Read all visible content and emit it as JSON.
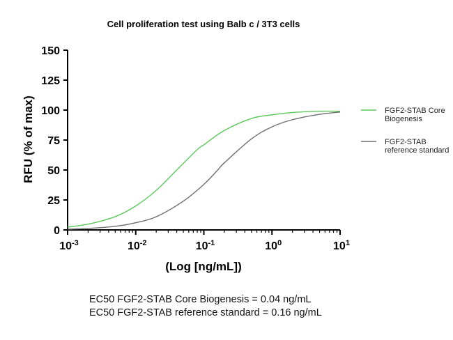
{
  "chart_data": {
    "type": "line",
    "title": "Cell proliferation test using Balb c / 3T3 cells",
    "xlabel": "(Log [ng/mL])",
    "ylabel": "RFU (% of max)",
    "x_scale": "log",
    "xlim": [
      0.001,
      10
    ],
    "ylim": [
      0,
      150
    ],
    "x_ticks": [
      {
        "value": 0.001,
        "base": "10",
        "exp": "-3"
      },
      {
        "value": 0.01,
        "base": "10",
        "exp": "-2"
      },
      {
        "value": 0.1,
        "base": "10",
        "exp": "-1"
      },
      {
        "value": 1,
        "base": "10",
        "exp": "0"
      },
      {
        "value": 10,
        "base": "10",
        "exp": "1"
      }
    ],
    "y_ticks": [
      0,
      25,
      50,
      75,
      100,
      125,
      150
    ],
    "legend_position": "right",
    "series": [
      {
        "name": "FGF2-STAB Core Biogenesis",
        "legend_lines": [
          "FGF2-STAB Core",
          "Biogenesis"
        ],
        "color": "#5cc85c",
        "x": [
          0.001,
          0.002,
          0.005,
          0.01,
          0.02,
          0.04,
          0.08,
          0.1,
          0.2,
          0.5,
          1,
          2,
          5,
          10
        ],
        "y": [
          2.4,
          4.8,
          11.1,
          20,
          33,
          50,
          67,
          71,
          83,
          93,
          96,
          98,
          99,
          99
        ]
      },
      {
        "name": "FGF2-STAB reference standard",
        "legend_lines": [
          "FGF2-STAB",
          "reference standard"
        ],
        "color": "#6e6e6e",
        "x": [
          0.001,
          0.002,
          0.005,
          0.01,
          0.02,
          0.05,
          0.1,
          0.16,
          0.2,
          0.5,
          1,
          2,
          5,
          10
        ],
        "y": [
          0.6,
          1.2,
          3,
          6,
          11,
          24,
          38,
          50,
          56,
          76,
          86,
          92,
          96.5,
          98.4
        ]
      }
    ]
  },
  "notes": [
    "EC50 FGF2-STAB Core Biogenesis = 0.04 ng/mL",
    "EC50 FGF2-STAB reference standard = 0.16 ng/mL"
  ]
}
